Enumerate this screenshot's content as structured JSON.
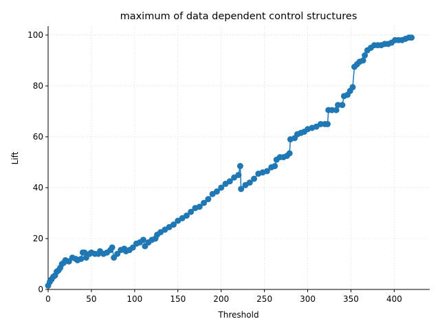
{
  "chart_data": {
    "type": "line",
    "title": "maximum of data dependent control structures",
    "x_label": "Threshold",
    "y_label": "Lift",
    "x": [
      0,
      2,
      4,
      6,
      8,
      10,
      12,
      14,
      16,
      18,
      20,
      24,
      28,
      32,
      34,
      38,
      40,
      42,
      44,
      48,
      50,
      54,
      58,
      60,
      64,
      68,
      72,
      74,
      76,
      80,
      84,
      88,
      90,
      94,
      98,
      102,
      106,
      110,
      112,
      116,
      120,
      124,
      126,
      130,
      135,
      140,
      145,
      150,
      155,
      160,
      165,
      170,
      175,
      180,
      185,
      190,
      195,
      200,
      205,
      210,
      215,
      220,
      222,
      223,
      228,
      233,
      238,
      243,
      248,
      253,
      258,
      262,
      264,
      268,
      272,
      276,
      279,
      280,
      285,
      288,
      292,
      296,
      300,
      305,
      310,
      315,
      320,
      323,
      324,
      328,
      333,
      335,
      340,
      342,
      346,
      349,
      352,
      354,
      357,
      360,
      364,
      366,
      369,
      373,
      377,
      381,
      385,
      389,
      393,
      397,
      401,
      405,
      409,
      413,
      417,
      420
    ],
    "series": [
      {
        "name": "Lift",
        "color": "#1f77b4",
        "values": [
          1.5,
          3,
          4,
          5,
          5.5,
          7,
          7.5,
          8.5,
          10,
          10.5,
          11.5,
          11,
          12.5,
          12,
          11.5,
          12,
          14.5,
          14.5,
          12.5,
          14,
          14.5,
          14,
          14,
          15,
          14,
          14.5,
          15.5,
          16.5,
          12.5,
          14,
          15.5,
          16,
          15,
          15.5,
          16.5,
          18,
          18.5,
          19.5,
          17,
          18.5,
          19.5,
          20,
          21.5,
          22.5,
          23.5,
          24.5,
          25.5,
          27,
          28,
          29,
          30.5,
          32,
          32.5,
          34,
          35.5,
          37.5,
          38.5,
          40,
          41.5,
          42.5,
          44,
          45,
          48.5,
          39.5,
          41,
          42,
          43.5,
          45.5,
          46,
          46.5,
          48,
          48.5,
          51,
          52,
          52,
          52.5,
          53.5,
          59,
          59.5,
          61,
          61.5,
          62,
          63,
          63.5,
          64,
          65,
          65,
          65,
          70.5,
          70.5,
          70.5,
          72.5,
          72.5,
          76,
          76.5,
          78,
          79.5,
          87.5,
          88.5,
          89.5,
          90,
          92,
          94,
          95,
          96,
          96,
          96,
          96.5,
          96.5,
          97,
          98,
          98,
          98,
          98.5,
          99,
          99
        ]
      }
    ],
    "xlim": [
      0,
      441
    ],
    "ylim": [
      0,
      103.5
    ],
    "xticks": [
      0,
      50,
      100,
      150,
      200,
      250,
      300,
      350,
      400
    ],
    "yticks": [
      0,
      20,
      40,
      60,
      80,
      100
    ],
    "grid": true
  }
}
